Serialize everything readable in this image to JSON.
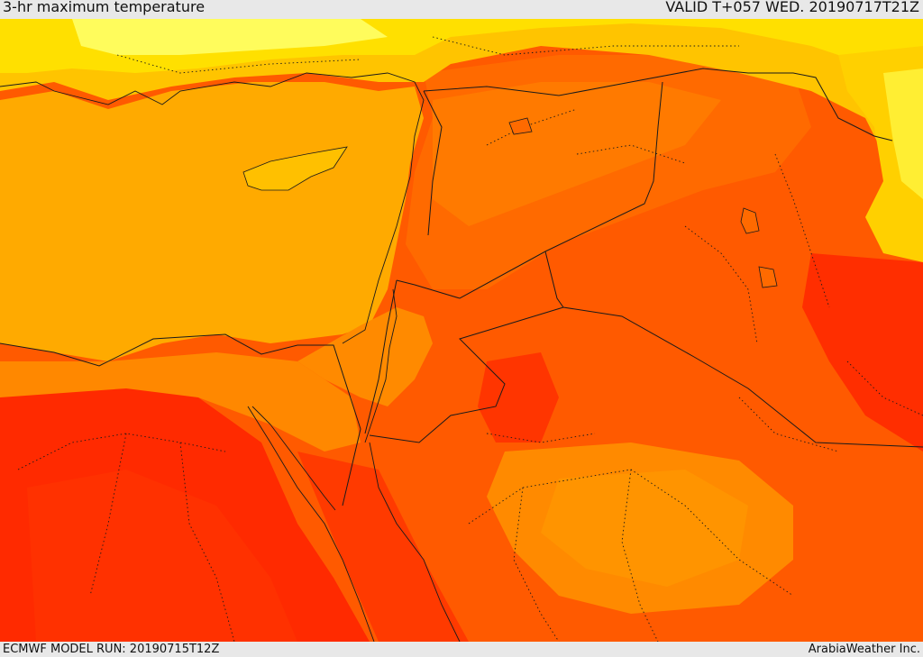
{
  "header": {
    "title": "3-hr maximum temperature",
    "valid": "VALID T+057 WED. 20190717T21Z"
  },
  "footer": {
    "model_run": "ECMWF MODEL RUN: 20190715T12Z",
    "credit": "ArabiaWeather Inc."
  },
  "palette": {
    "pale_yellow": "#ffff66",
    "yellow": "#ffe000",
    "amber": "#ffc400",
    "orange_light": "#ffaa00",
    "orange": "#ff8c00",
    "orange_dark": "#ff6e00",
    "red_orange": "#ff4f00",
    "red": "#ff2a00",
    "border_color": "#1a1a1a"
  }
}
